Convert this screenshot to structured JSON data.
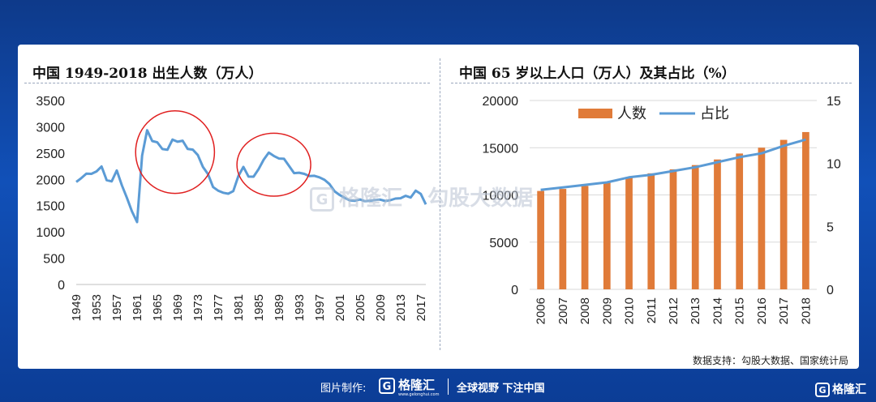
{
  "chart_data": [
    {
      "type": "line",
      "title": "中国 1949-2018 出生人数（万人）",
      "x": [
        1949,
        1950,
        1951,
        1952,
        1953,
        1954,
        1955,
        1956,
        1957,
        1958,
        1959,
        1960,
        1961,
        1962,
        1963,
        1964,
        1965,
        1966,
        1967,
        1968,
        1969,
        1970,
        1971,
        1972,
        1973,
        1974,
        1975,
        1976,
        1977,
        1978,
        1979,
        1980,
        1981,
        1982,
        1983,
        1984,
        1985,
        1986,
        1987,
        1988,
        1989,
        1990,
        1991,
        1992,
        1993,
        1994,
        1995,
        1996,
        1997,
        1998,
        1999,
        2000,
        2001,
        2002,
        2003,
        2004,
        2005,
        2006,
        2007,
        2008,
        2009,
        2010,
        2011,
        2012,
        2013,
        2014,
        2015,
        2016,
        2017,
        2018
      ],
      "series": [
        {
          "values": [
            1950,
            2023,
            2107,
            2105,
            2151,
            2245,
            1984,
            1961,
            2169,
            1889,
            1647,
            1389,
            1187,
            2451,
            2934,
            2729,
            2704,
            2577,
            2563,
            2757,
            2715,
            2736,
            2578,
            2566,
            2463,
            2235,
            2102,
            1853,
            1786,
            1745,
            1727,
            1776,
            2064,
            2237,
            2052,
            2050,
            2196,
            2374,
            2508,
            2445,
            2396,
            2391,
            2258,
            2119,
            2126,
            2104,
            2063,
            2067,
            2038,
            1991,
            1909,
            1771,
            1702,
            1647,
            1599,
            1593,
            1617,
            1584,
            1594,
            1608,
            1615,
            1588,
            1604,
            1635,
            1640,
            1687,
            1655,
            1786,
            1723,
            1523
          ],
          "color": "#5b9bd5"
        }
      ],
      "xticks": [
        1949,
        1953,
        1957,
        1961,
        1965,
        1969,
        1973,
        1977,
        1981,
        1985,
        1989,
        1993,
        1997,
        2001,
        2005,
        2009,
        2013,
        2017
      ],
      "ylim": [
        0,
        3500
      ],
      "yticks": [
        0,
        500,
        1000,
        1500,
        2000,
        2500,
        3000,
        3500
      ],
      "annotations": [
        {
          "type": "ellipse",
          "range": [
            1962,
            1975
          ]
        },
        {
          "type": "ellipse",
          "range": [
            1982,
            1994
          ]
        }
      ]
    },
    {
      "type": "bar",
      "title": "中国 65 岁以上人口（万人）及其占比（%）",
      "categories": [
        "2006",
        "2007",
        "2008",
        "2009",
        "2010",
        "2011",
        "2012",
        "2013",
        "2014",
        "2015",
        "2016",
        "2017",
        "2018"
      ],
      "series": [
        {
          "name": "人数",
          "type": "bar",
          "axis": "left",
          "color": "#e07b39",
          "values": [
            10419,
            10636,
            10956,
            11307,
            11894,
            12288,
            12714,
            13161,
            13755,
            14386,
            15003,
            15831,
            16658
          ]
        },
        {
          "name": "占比",
          "type": "line",
          "axis": "right",
          "color": "#5b9bd5",
          "values": [
            7.9,
            8.1,
            8.3,
            8.5,
            8.9,
            9.1,
            9.4,
            9.7,
            10.1,
            10.5,
            10.8,
            11.4,
            11.9
          ]
        }
      ],
      "ylim": [
        0,
        20000
      ],
      "yticks": [
        0,
        5000,
        10000,
        15000,
        20000
      ],
      "y2lim": [
        0,
        15
      ],
      "y2ticks": [
        0,
        5,
        10,
        15
      ],
      "legend": "top"
    }
  ],
  "source_text": "数据支持：勾股大数据、国家统计局",
  "footer": {
    "made_by": "图片制作:",
    "logo_text": "格隆汇",
    "logo_sub": "www.gelonghui.com",
    "slogan": "全球视野 下注中国",
    "corner_logo": "格隆汇"
  },
  "watermark": {
    "logo": "格隆汇",
    "text": "勾股大数据"
  },
  "colors": {
    "background": "#0e3a8a",
    "bar": "#e07b39",
    "line": "#5b9bd5",
    "annotation": "#e02020"
  }
}
